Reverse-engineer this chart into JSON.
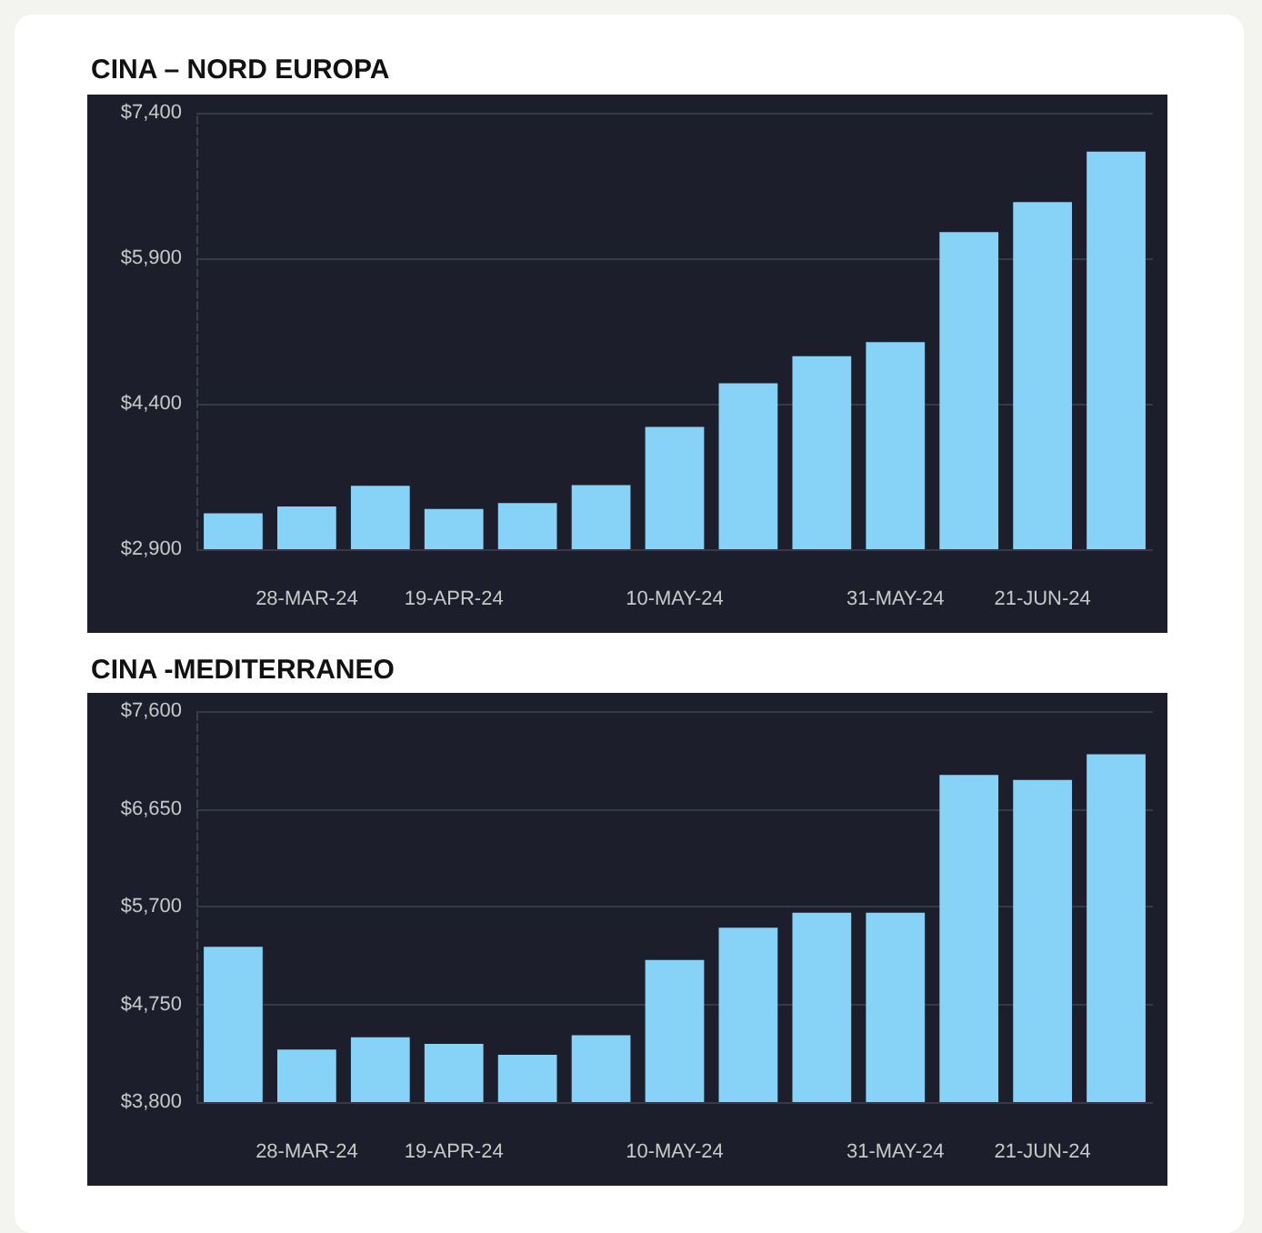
{
  "chart_data": [
    {
      "type": "bar",
      "title": "CINA – NORD EUROPA",
      "categories": [
        null,
        "28-MAR-24",
        null,
        "19-APR-24",
        null,
        null,
        "10-MAY-24",
        null,
        null,
        "31-MAY-24",
        null,
        "21-JUN-24",
        null
      ],
      "values": [
        3270,
        3340,
        3555,
        3315,
        3375,
        3560,
        4160,
        4610,
        4890,
        5035,
        6170,
        6480,
        7000
      ],
      "color": "#87d3f8",
      "ylim": [
        2900,
        7400
      ],
      "yticks": [
        {
          "value": 2900,
          "label": "$2,900"
        },
        {
          "value": 4400,
          "label": "$4,400"
        },
        {
          "value": 5900,
          "label": "$5,900"
        },
        {
          "value": 7400,
          "label": "$7,400"
        }
      ],
      "grid": "y"
    },
    {
      "type": "bar",
      "title": "CINA -MEDITERRANEO",
      "categories": [
        null,
        "28-MAR-24",
        null,
        "19-APR-24",
        null,
        null,
        "10-MAY-24",
        null,
        null,
        "31-MAY-24",
        null,
        "21-JUN-24",
        null
      ],
      "values": [
        5310,
        4310,
        4430,
        4365,
        4260,
        4450,
        5180,
        5495,
        5640,
        5640,
        6980,
        6930,
        7180
      ],
      "color": "#87d3f8",
      "ylim": [
        3800,
        7600
      ],
      "yticks": [
        {
          "value": 3800,
          "label": "$3,800"
        },
        {
          "value": 4750,
          "label": "$4,750"
        },
        {
          "value": 5700,
          "label": "$5,700"
        },
        {
          "value": 6650,
          "label": "$6,650"
        },
        {
          "value": 7600,
          "label": "$7,600"
        }
      ],
      "grid": "y"
    }
  ]
}
